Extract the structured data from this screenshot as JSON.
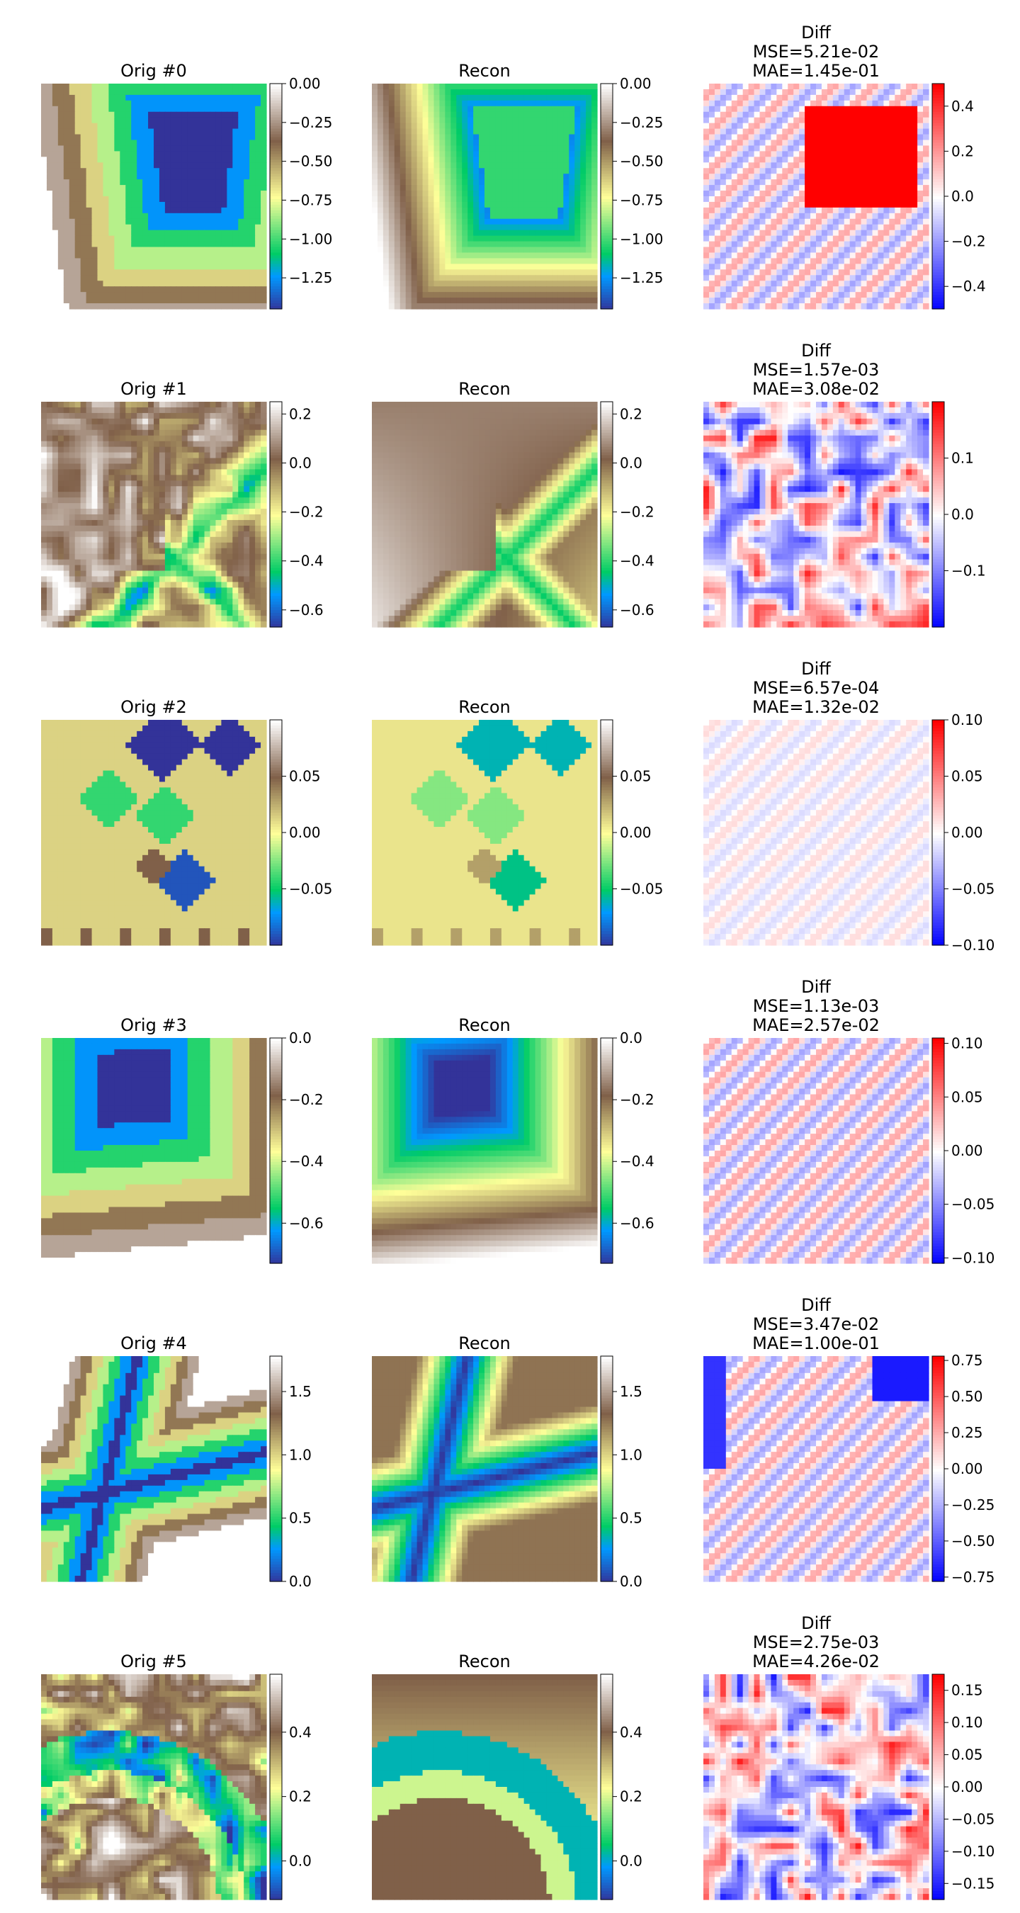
{
  "colors": {
    "terrain": [
      "#333399",
      "#0099ff",
      "#00cc66",
      "#ffff99",
      "#806049",
      "#ffffff"
    ],
    "bwr": [
      "#0000ff",
      "#ffffff",
      "#ff0000"
    ]
  },
  "chart_data": [
    {
      "type": "heatmap",
      "row": 0,
      "pattern": "pyramid",
      "orig": {
        "title": "Orig #0",
        "colormap": "terrain",
        "vmin": -1.45,
        "vmax": 0.0,
        "ticks": [
          0.0,
          -0.25,
          -0.5,
          -0.75,
          -1.0,
          -1.25
        ],
        "tick_labels": [
          "0.00",
          "−0.25",
          "−0.50",
          "−0.75",
          "−1.00",
          "−1.25"
        ]
      },
      "recon": {
        "title": "Recon",
        "colormap": "terrain",
        "vmin": -1.45,
        "vmax": 0.0,
        "ticks": [
          0.0,
          -0.25,
          -0.5,
          -0.75,
          -1.0,
          -1.25
        ],
        "tick_labels": [
          "0.00",
          "−0.25",
          "−0.50",
          "−0.75",
          "−1.00",
          "−1.25"
        ]
      },
      "diff": {
        "title_lines": [
          "Diff",
          "MSE=5.21e-02",
          "MAE=1.45e-01"
        ],
        "colormap": "bwr",
        "vmin": -0.5,
        "vmax": 0.5,
        "ticks": [
          0.4,
          0.2,
          0.0,
          -0.2,
          -0.4
        ],
        "tick_labels": [
          "0.4",
          "0.2",
          "0.0",
          "−0.2",
          "−0.4"
        ]
      }
    },
    {
      "type": "heatmap",
      "row": 1,
      "pattern": "noisy-x",
      "orig": {
        "title": "Orig #1",
        "colormap": "terrain",
        "vmin": -0.67,
        "vmax": 0.25,
        "ticks": [
          0.2,
          0.0,
          -0.2,
          -0.4,
          -0.6
        ],
        "tick_labels": [
          "0.2",
          "0.0",
          "−0.2",
          "−0.4",
          "−0.6"
        ]
      },
      "recon": {
        "title": "Recon",
        "colormap": "terrain",
        "vmin": -0.67,
        "vmax": 0.25,
        "ticks": [
          0.2,
          0.0,
          -0.2,
          -0.4,
          -0.6
        ],
        "tick_labels": [
          "0.2",
          "0.0",
          "−0.2",
          "−0.4",
          "−0.6"
        ]
      },
      "diff": {
        "title_lines": [
          "Diff",
          "MSE=1.57e-03",
          "MAE=3.08e-02"
        ],
        "colormap": "bwr",
        "vmin": -0.2,
        "vmax": 0.2,
        "ticks": [
          0.1,
          0.0,
          -0.1
        ],
        "tick_labels": [
          "0.1",
          "0.0",
          "−0.1"
        ]
      }
    },
    {
      "type": "heatmap",
      "row": 2,
      "pattern": "squares",
      "orig": {
        "title": "Orig #2",
        "colormap": "terrain",
        "vmin": -0.1,
        "vmax": 0.1,
        "ticks": [
          0.05,
          0.0,
          -0.05
        ],
        "tick_labels": [
          "0.05",
          "0.00",
          "−0.05"
        ]
      },
      "recon": {
        "title": "Recon",
        "colormap": "terrain",
        "vmin": -0.1,
        "vmax": 0.1,
        "ticks": [
          0.05,
          0.0,
          -0.05
        ],
        "tick_labels": [
          "0.05",
          "0.00",
          "−0.05"
        ]
      },
      "diff": {
        "title_lines": [
          "Diff",
          "MSE=6.57e-04",
          "MAE=1.32e-02"
        ],
        "colormap": "bwr",
        "vmin": -0.1,
        "vmax": 0.1,
        "ticks": [
          0.1,
          0.05,
          0.0,
          -0.05,
          -0.1
        ],
        "tick_labels": [
          "0.10",
          "0.05",
          "0.00",
          "−0.05",
          "−0.10"
        ]
      }
    },
    {
      "type": "heatmap",
      "row": 3,
      "pattern": "pyramid-2",
      "orig": {
        "title": "Orig #3",
        "colormap": "terrain",
        "vmin": -0.73,
        "vmax": 0.0,
        "ticks": [
          0.0,
          -0.2,
          -0.4,
          -0.6
        ],
        "tick_labels": [
          "0.0",
          "−0.2",
          "−0.4",
          "−0.6"
        ]
      },
      "recon": {
        "title": "Recon",
        "colormap": "terrain",
        "vmin": -0.73,
        "vmax": 0.0,
        "ticks": [
          0.0,
          -0.2,
          -0.4,
          -0.6
        ],
        "tick_labels": [
          "0.0",
          "−0.2",
          "−0.4",
          "−0.6"
        ]
      },
      "diff": {
        "title_lines": [
          "Diff",
          "MSE=1.13e-03",
          "MAE=2.57e-02"
        ],
        "colormap": "bwr",
        "vmin": -0.105,
        "vmax": 0.105,
        "ticks": [
          0.1,
          0.05,
          0.0,
          -0.05,
          -0.1
        ],
        "tick_labels": [
          "0.10",
          "0.05",
          "0.00",
          "−0.05",
          "−0.10"
        ]
      }
    },
    {
      "type": "heatmap",
      "row": 4,
      "pattern": "cross",
      "orig": {
        "title": "Orig #4",
        "colormap": "terrain",
        "vmin": 0.0,
        "vmax": 1.78,
        "ticks": [
          1.5,
          1.0,
          0.5,
          0.0
        ],
        "tick_labels": [
          "1.5",
          "1.0",
          "0.5",
          "0.0"
        ]
      },
      "recon": {
        "title": "Recon",
        "colormap": "terrain",
        "vmin": 0.0,
        "vmax": 1.78,
        "ticks": [
          1.5,
          1.0,
          0.5,
          0.0
        ],
        "tick_labels": [
          "1.5",
          "1.0",
          "0.5",
          "0.0"
        ]
      },
      "diff": {
        "title_lines": [
          "Diff",
          "MSE=3.47e-02",
          "MAE=1.00e-01"
        ],
        "colormap": "bwr",
        "vmin": -0.78,
        "vmax": 0.78,
        "ticks": [
          0.75,
          0.5,
          0.25,
          0.0,
          -0.25,
          -0.5,
          -0.75
        ],
        "tick_labels": [
          "0.75",
          "0.50",
          "0.25",
          "0.00",
          "−0.25",
          "−0.50",
          "−0.75"
        ]
      }
    },
    {
      "type": "heatmap",
      "row": 5,
      "pattern": "noisy-ring",
      "orig": {
        "title": "Orig #5",
        "colormap": "terrain",
        "vmin": -0.12,
        "vmax": 0.58,
        "ticks": [
          0.4,
          0.2,
          0.0
        ],
        "tick_labels": [
          "0.4",
          "0.2",
          "0.0"
        ]
      },
      "recon": {
        "title": "Recon",
        "colormap": "terrain",
        "vmin": -0.12,
        "vmax": 0.58,
        "ticks": [
          0.4,
          0.2,
          0.0
        ],
        "tick_labels": [
          "0.4",
          "0.2",
          "0.0"
        ]
      },
      "diff": {
        "title_lines": [
          "Diff",
          "MSE=2.75e-03",
          "MAE=4.26e-02"
        ],
        "colormap": "bwr",
        "vmin": -0.175,
        "vmax": 0.175,
        "ticks": [
          0.15,
          0.1,
          0.05,
          0.0,
          -0.05,
          -0.1,
          -0.15
        ],
        "tick_labels": [
          "0.15",
          "0.10",
          "0.05",
          "0.00",
          "−0.05",
          "−0.10",
          "−0.15"
        ]
      }
    }
  ]
}
